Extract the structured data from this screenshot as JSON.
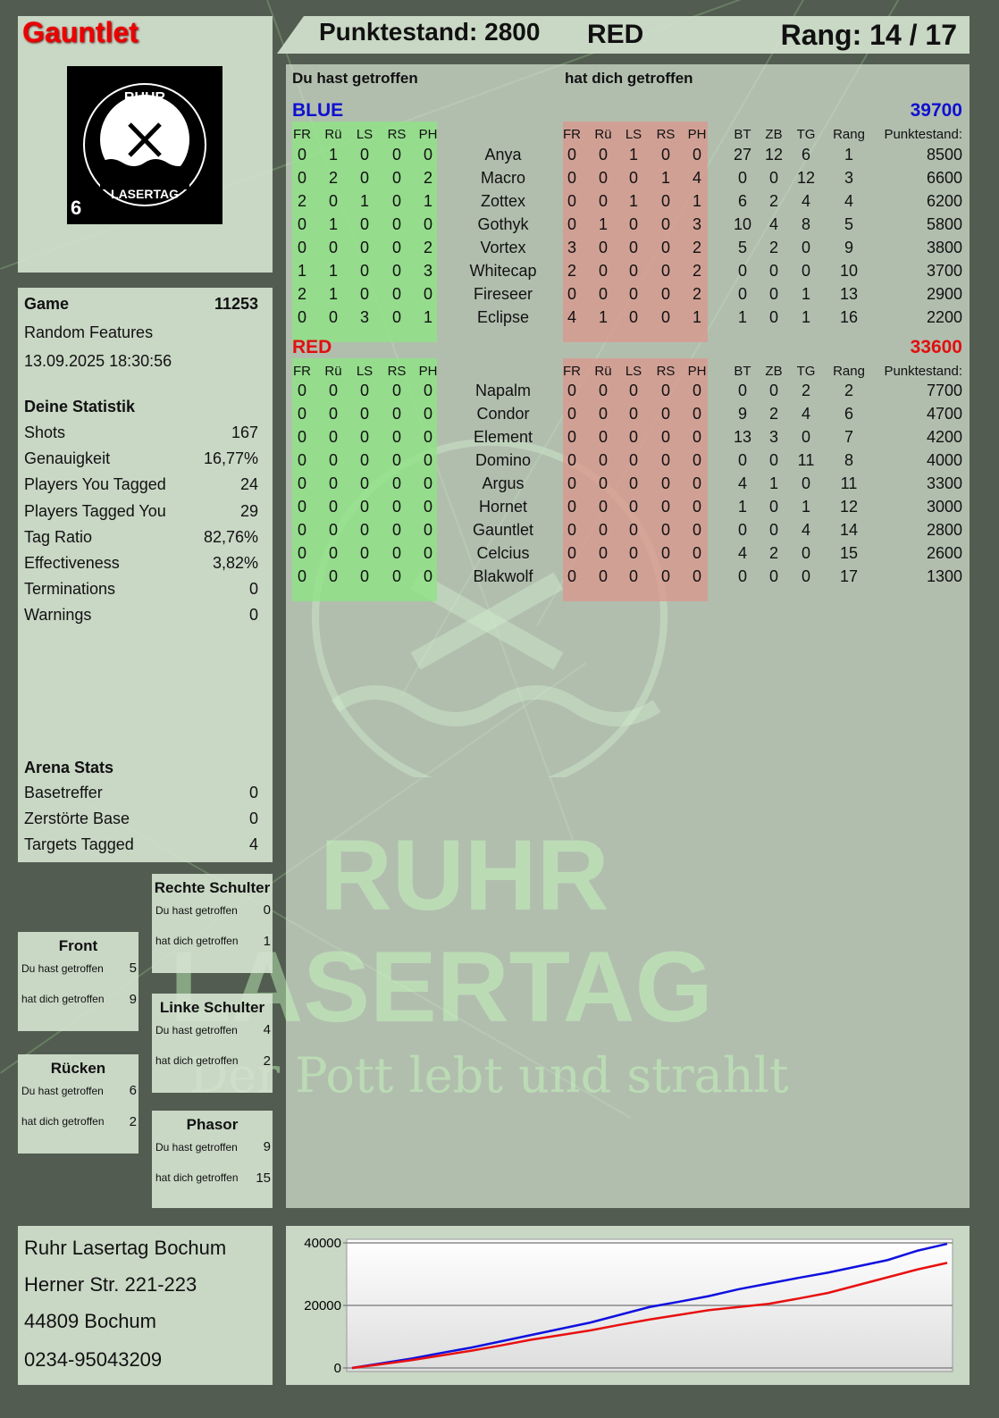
{
  "player": {
    "name": "Gauntlet",
    "logo_text": [
      "RUHR",
      "LASERTAG"
    ],
    "logo_badge": "6"
  },
  "header": {
    "score_label": "Punktestand: 2800",
    "team": "RED",
    "rank_label": "Rang: 14 / 17"
  },
  "main": {
    "you_hit": "Du hast getroffen",
    "hit_you": "hat dich getroffen",
    "columns": {
      "zones": [
        "FR",
        "Rü",
        "LS",
        "RS",
        "PH"
      ],
      "stats": [
        "BT",
        "ZB",
        "TG",
        "Rang"
      ],
      "score": "Punktestand:"
    },
    "teams": [
      {
        "name": "BLUE",
        "total": "39700",
        "color": "#1010d0",
        "players": [
          {
            "name": "Anya",
            "hit": [
              0,
              1,
              0,
              0,
              0
            ],
            "got": [
              0,
              0,
              1,
              0,
              0
            ],
            "stats": [
              27,
              12,
              6,
              1
            ],
            "score": 8500
          },
          {
            "name": "Macro",
            "hit": [
              0,
              2,
              0,
              0,
              2
            ],
            "got": [
              0,
              0,
              0,
              1,
              4
            ],
            "stats": [
              0,
              0,
              12,
              3
            ],
            "score": 6600
          },
          {
            "name": "Zottex",
            "hit": [
              2,
              0,
              1,
              0,
              1
            ],
            "got": [
              0,
              0,
              1,
              0,
              1
            ],
            "stats": [
              6,
              2,
              4,
              4
            ],
            "score": 6200
          },
          {
            "name": "Gothyk",
            "hit": [
              0,
              1,
              0,
              0,
              0
            ],
            "got": [
              0,
              1,
              0,
              0,
              3
            ],
            "stats": [
              10,
              4,
              8,
              5
            ],
            "score": 5800
          },
          {
            "name": "Vortex",
            "hit": [
              0,
              0,
              0,
              0,
              2
            ],
            "got": [
              3,
              0,
              0,
              0,
              2
            ],
            "stats": [
              5,
              2,
              0,
              9
            ],
            "score": 3800
          },
          {
            "name": "Whitecap",
            "hit": [
              1,
              1,
              0,
              0,
              3
            ],
            "got": [
              2,
              0,
              0,
              0,
              2
            ],
            "stats": [
              0,
              0,
              0,
              10
            ],
            "score": 3700
          },
          {
            "name": "Fireseer",
            "hit": [
              2,
              1,
              0,
              0,
              0
            ],
            "got": [
              0,
              0,
              0,
              0,
              2
            ],
            "stats": [
              0,
              0,
              1,
              13
            ],
            "score": 2900
          },
          {
            "name": "Eclipse",
            "hit": [
              0,
              0,
              3,
              0,
              1
            ],
            "got": [
              4,
              1,
              0,
              0,
              1
            ],
            "stats": [
              1,
              0,
              1,
              16
            ],
            "score": 2200
          }
        ]
      },
      {
        "name": "RED",
        "total": "33600",
        "color": "#e01010",
        "players": [
          {
            "name": "Napalm",
            "hit": [
              0,
              0,
              0,
              0,
              0
            ],
            "got": [
              0,
              0,
              0,
              0,
              0
            ],
            "stats": [
              0,
              0,
              2,
              2
            ],
            "score": 7700
          },
          {
            "name": "Condor",
            "hit": [
              0,
              0,
              0,
              0,
              0
            ],
            "got": [
              0,
              0,
              0,
              0,
              0
            ],
            "stats": [
              9,
              2,
              4,
              6
            ],
            "score": 4700
          },
          {
            "name": "Element",
            "hit": [
              0,
              0,
              0,
              0,
              0
            ],
            "got": [
              0,
              0,
              0,
              0,
              0
            ],
            "stats": [
              13,
              3,
              0,
              7
            ],
            "score": 4200
          },
          {
            "name": "Domino",
            "hit": [
              0,
              0,
              0,
              0,
              0
            ],
            "got": [
              0,
              0,
              0,
              0,
              0
            ],
            "stats": [
              0,
              0,
              11,
              8
            ],
            "score": 4000
          },
          {
            "name": "Argus",
            "hit": [
              0,
              0,
              0,
              0,
              0
            ],
            "got": [
              0,
              0,
              0,
              0,
              0
            ],
            "stats": [
              4,
              1,
              0,
              11
            ],
            "score": 3300
          },
          {
            "name": "Hornet",
            "hit": [
              0,
              0,
              0,
              0,
              0
            ],
            "got": [
              0,
              0,
              0,
              0,
              0
            ],
            "stats": [
              1,
              0,
              1,
              12
            ],
            "score": 3000
          },
          {
            "name": "Gauntlet",
            "hit": [
              0,
              0,
              0,
              0,
              0
            ],
            "got": [
              0,
              0,
              0,
              0,
              0
            ],
            "stats": [
              0,
              0,
              4,
              14
            ],
            "score": 2800
          },
          {
            "name": "Celcius",
            "hit": [
              0,
              0,
              0,
              0,
              0
            ],
            "got": [
              0,
              0,
              0,
              0,
              0
            ],
            "stats": [
              4,
              2,
              0,
              15
            ],
            "score": 2600
          },
          {
            "name": "Blakwolf",
            "hit": [
              0,
              0,
              0,
              0,
              0
            ],
            "got": [
              0,
              0,
              0,
              0,
              0
            ],
            "stats": [
              0,
              0,
              0,
              17
            ],
            "score": 1300
          }
        ]
      }
    ]
  },
  "game": {
    "label": "Game",
    "number": "11253",
    "mode": "Random Features",
    "datetime": "13.09.2025 18:30:56"
  },
  "stats": {
    "title": "Deine Statistik",
    "rows": [
      {
        "label": "Shots",
        "value": "167"
      },
      {
        "label": "Genauigkeit",
        "value": "16,77%"
      },
      {
        "label": "Players You Tagged",
        "value": "24"
      },
      {
        "label": "Players Tagged You",
        "value": "29"
      },
      {
        "label": "Tag Ratio",
        "value": "82,76%"
      },
      {
        "label": "Effectiveness",
        "value": "3,82%"
      },
      {
        "label": "Terminations",
        "value": "0"
      },
      {
        "label": "Warnings",
        "value": "0"
      }
    ]
  },
  "arena": {
    "title": "Arena Stats",
    "rows": [
      {
        "label": "Basetreffer",
        "value": "0"
      },
      {
        "label": "Zerstörte Base",
        "value": "0"
      },
      {
        "label": "Targets Tagged",
        "value": "4"
      }
    ]
  },
  "zones": [
    {
      "title": "Rechte Schulter",
      "you_hit": "Du hast getroffen",
      "hit_you": "hat dich getroffen",
      "hit": "0",
      "got": "1"
    },
    {
      "title": "Front",
      "you_hit": "Du hast getroffen",
      "hit_you": "hat dich getroffen",
      "hit": "5",
      "got": "9"
    },
    {
      "title": "Linke Schulter",
      "you_hit": "Du hast getroffen",
      "hit_you": "hat dich getroffen",
      "hit": "4",
      "got": "2"
    },
    {
      "title": "Rücken",
      "you_hit": "Du hast getroffen",
      "hit_you": "hat dich getroffen",
      "hit": "6",
      "got": "2"
    },
    {
      "title": "Phasor",
      "you_hit": "Du hast getroffen",
      "hit_you": "hat dich getroffen",
      "hit": "9",
      "got": "15"
    }
  ],
  "address": [
    "Ruhr Lasertag Bochum",
    "Herner Str. 221-223",
    "44809 Bochum",
    "0234-95043209"
  ],
  "watermark": {
    "line1": "RUHR",
    "line2": "LASERTAG",
    "slogan": "Der Pott lebt und strahlt"
  },
  "chart_data": {
    "type": "line",
    "ylim": [
      0,
      40000
    ],
    "yticks": [
      "0",
      "20000",
      "40000"
    ],
    "grid": true,
    "series": [
      {
        "color": "#1010e0",
        "values": [
          0,
          1500,
          3000,
          4800,
          6500,
          8500,
          10500,
          12500,
          14500,
          17000,
          19500,
          21200,
          23000,
          25200,
          27000,
          28800,
          30500,
          32500,
          34500,
          37500,
          39700
        ]
      },
      {
        "color": "#e81010",
        "values": [
          0,
          1200,
          2500,
          4000,
          5500,
          7200,
          9000,
          10500,
          12000,
          13800,
          15500,
          17000,
          18500,
          19500,
          20500,
          22200,
          24000,
          26500,
          29000,
          31500,
          33600
        ]
      }
    ]
  }
}
